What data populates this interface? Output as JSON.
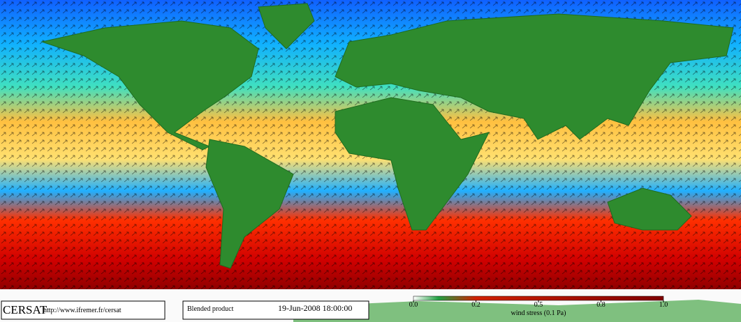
{
  "logo": "CERSAT",
  "url": "http://www.ifremer.fr/cersat",
  "product": "Blended product",
  "datetime": "19-Jun-2008 18:00:00",
  "colorbar": {
    "label": "wind stress (0.1 Pa)",
    "ticks": [
      {
        "value": 0,
        "label": "0.0"
      },
      0.2,
      0.5,
      0.8,
      {
        "value": 1,
        "label": "1.0"
      }
    ]
  }
}
